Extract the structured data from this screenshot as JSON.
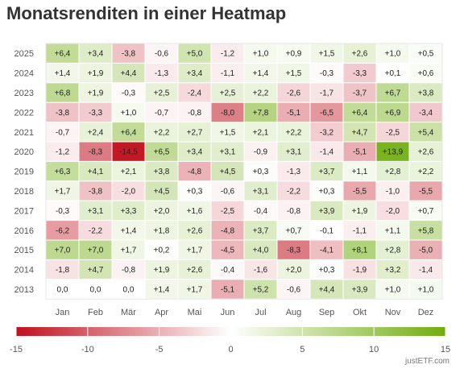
{
  "title": "Monatsrenditen in einer Heatmap",
  "source": "justETF.com",
  "colors": {
    "negative": "#c0111d",
    "neutral": "#ffffff",
    "positive": "#6fad0e"
  },
  "chart_data": {
    "type": "heatmap",
    "title": "Monatsrenditen in einer Heatmap",
    "x_categories": [
      "Jan",
      "Feb",
      "Mär",
      "Apr",
      "Mai",
      "Jun",
      "Jul",
      "Aug",
      "Sep",
      "Okt",
      "Nov",
      "Dez"
    ],
    "y_categories": [
      "2025",
      "2024",
      "2023",
      "2022",
      "2021",
      "2020",
      "2019",
      "2018",
      "2017",
      "2016",
      "2015",
      "2014",
      "2013"
    ],
    "values": [
      [
        "+6,4",
        "+3,4",
        "-3,8",
        "-0,6",
        "+5,0",
        "-1,2",
        "+1,0",
        "+0,9",
        "+1,5",
        "+2,6",
        "+1,0",
        "+0,5"
      ],
      [
        "+1,4",
        "+1,9",
        "+4,4",
        "-1,3",
        "+3,4",
        "-1,1",
        "+1,4",
        "+1,5",
        "-0,3",
        "-3,3",
        "+0,1",
        "+0,6"
      ],
      [
        "+6,8",
        "+1,9",
        "-0,3",
        "+2,5",
        "-2,4",
        "+2,5",
        "+2,2",
        "-2,6",
        "-1,7",
        "-3,7",
        "+6,7",
        "+3,8"
      ],
      [
        "-3,8",
        "-3,3",
        "+1,0",
        "-0,7",
        "-0,8",
        "-8,0",
        "+7,8",
        "-5,1",
        "-6,5",
        "+6,4",
        "+6,9",
        "-3,4"
      ],
      [
        "-0,7",
        "+2,4",
        "+6,4",
        "+2,2",
        "+2,7",
        "+1,5",
        "+2,1",
        "+2,2",
        "-3,2",
        "+4,7",
        "-2,5",
        "+5,4"
      ],
      [
        "-1,2",
        "-8,3",
        "-14,5",
        "+6,5",
        "+3,4",
        "+3,1",
        "-0,9",
        "+3,1",
        "-1,4",
        "-5,1",
        "+13,9",
        "+2,6"
      ],
      [
        "+6,3",
        "+4,1",
        "+2,1",
        "+3,8",
        "-4,8",
        "+4,5",
        "+0,3",
        "-1,3",
        "+3,7",
        "+1,1",
        "+2,8",
        "+2,2"
      ],
      [
        "+1,7",
        "-3,8",
        "-2,0",
        "+4,5",
        "+0,3",
        "-0,6",
        "+3,1",
        "-2,2",
        "+0,3",
        "-5,5",
        "-1,0",
        "-5,5"
      ],
      [
        "-0,3",
        "+3,1",
        "+3,3",
        "+2,0",
        "+1,6",
        "-2,5",
        "-0,4",
        "-0,8",
        "+3,9",
        "+1,9",
        "-2,0",
        "+0,7"
      ],
      [
        "-6,2",
        "-2,2",
        "+1,4",
        "+1,8",
        "+2,6",
        "-4,8",
        "+3,7",
        "+0,7",
        "-0,1",
        "-1,1",
        "+1,1",
        "+5,8"
      ],
      [
        "+7,0",
        "+7,0",
        "+1,7",
        "+0,2",
        "+1,7",
        "-4,5",
        "+4,0",
        "-8,3",
        "-4,1",
        "+8,1",
        "+2,8",
        "-5,0"
      ],
      [
        "-1,8",
        "+4,7",
        "-0,8",
        "+1,9",
        "+2,6",
        "-0,4",
        "-1,6",
        "+2,0",
        "+0,3",
        "-1,9",
        "+3,2",
        "-1,4"
      ],
      [
        "0,0",
        "0,0",
        "0,0",
        "+1,4",
        "+1,7",
        "-5,1",
        "+5,2",
        "-0,6",
        "+4,4",
        "+3,9",
        "+1,0",
        "+1,0"
      ]
    ],
    "color_scale": {
      "min": -15,
      "max": 15,
      "tick_labels": [
        "-15",
        "-10",
        "-5",
        "0",
        "5",
        "10",
        "15"
      ]
    }
  }
}
